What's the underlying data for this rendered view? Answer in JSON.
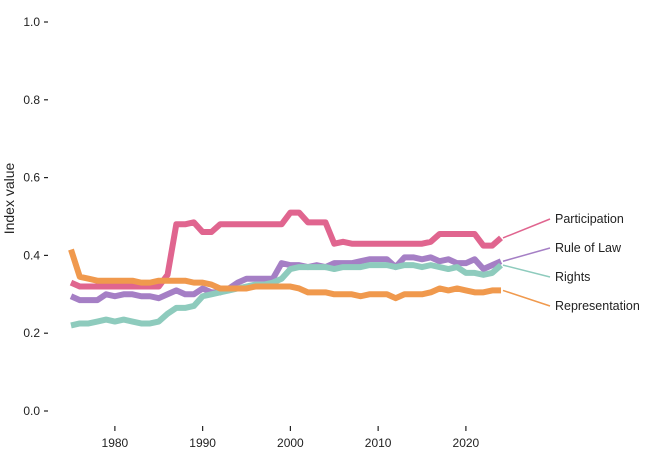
{
  "chart_data": {
    "type": "line",
    "title": "",
    "xlabel": "",
    "ylabel": "Index value",
    "xlim": [
      1974.5,
      2025.5
    ],
    "ylim": [
      0,
      1
    ],
    "x_ticks": [
      1980,
      1990,
      2000,
      2010,
      2020
    ],
    "y_ticks": [
      0.0,
      0.2,
      0.4,
      0.6,
      0.8,
      1.0
    ],
    "y_tick_labels": [
      "0.0",
      "0.2",
      "0.4",
      "0.6",
      "0.8",
      "1.0"
    ],
    "grid": false,
    "legend": "direct labels at line ends (right)",
    "x": [
      1975,
      1976,
      1977,
      1978,
      1979,
      1980,
      1981,
      1982,
      1983,
      1984,
      1985,
      1986,
      1987,
      1988,
      1989,
      1990,
      1991,
      1992,
      1993,
      1994,
      1995,
      1996,
      1997,
      1998,
      1999,
      2000,
      2001,
      2002,
      2003,
      2004,
      2005,
      2006,
      2007,
      2008,
      2009,
      2010,
      2011,
      2012,
      2013,
      2014,
      2015,
      2016,
      2017,
      2018,
      2019,
      2020,
      2021,
      2022,
      2023,
      2024
    ],
    "series": [
      {
        "name": "Participation",
        "color": "#e0658f",
        "values": [
          0.33,
          0.32,
          0.32,
          0.32,
          0.32,
          0.32,
          0.32,
          0.32,
          0.32,
          0.32,
          0.32,
          0.35,
          0.48,
          0.48,
          0.485,
          0.46,
          0.46,
          0.48,
          0.48,
          0.48,
          0.48,
          0.48,
          0.48,
          0.48,
          0.48,
          0.51,
          0.51,
          0.485,
          0.485,
          0.485,
          0.43,
          0.435,
          0.43,
          0.43,
          0.43,
          0.43,
          0.43,
          0.43,
          0.43,
          0.43,
          0.43,
          0.435,
          0.455,
          0.455,
          0.455,
          0.455,
          0.455,
          0.425,
          0.425,
          0.445
        ]
      },
      {
        "name": "Rule of Law",
        "color": "#a57fc5",
        "values": [
          0.295,
          0.285,
          0.285,
          0.285,
          0.3,
          0.295,
          0.3,
          0.3,
          0.295,
          0.295,
          0.29,
          0.3,
          0.31,
          0.3,
          0.3,
          0.315,
          0.305,
          0.305,
          0.315,
          0.33,
          0.34,
          0.34,
          0.34,
          0.34,
          0.38,
          0.375,
          0.375,
          0.37,
          0.375,
          0.37,
          0.38,
          0.38,
          0.38,
          0.385,
          0.39,
          0.39,
          0.39,
          0.37,
          0.395,
          0.395,
          0.39,
          0.395,
          0.385,
          0.39,
          0.38,
          0.38,
          0.39,
          0.365,
          0.375,
          0.385
        ]
      },
      {
        "name": "Rights",
        "color": "#8ecbbd",
        "values": [
          0.22,
          0.225,
          0.225,
          0.23,
          0.235,
          0.23,
          0.235,
          0.23,
          0.225,
          0.225,
          0.23,
          0.25,
          0.265,
          0.265,
          0.27,
          0.295,
          0.3,
          0.305,
          0.31,
          0.315,
          0.32,
          0.325,
          0.325,
          0.33,
          0.34,
          0.365,
          0.37,
          0.37,
          0.37,
          0.37,
          0.365,
          0.37,
          0.37,
          0.37,
          0.375,
          0.375,
          0.375,
          0.37,
          0.375,
          0.375,
          0.37,
          0.375,
          0.37,
          0.365,
          0.37,
          0.355,
          0.355,
          0.35,
          0.355,
          0.375
        ]
      },
      {
        "name": "Representation",
        "color": "#f0994d",
        "values": [
          0.415,
          0.345,
          0.34,
          0.335,
          0.335,
          0.335,
          0.335,
          0.335,
          0.33,
          0.33,
          0.335,
          0.335,
          0.335,
          0.335,
          0.33,
          0.33,
          0.325,
          0.315,
          0.315,
          0.315,
          0.315,
          0.32,
          0.32,
          0.32,
          0.32,
          0.32,
          0.315,
          0.305,
          0.305,
          0.305,
          0.3,
          0.3,
          0.3,
          0.295,
          0.3,
          0.3,
          0.3,
          0.29,
          0.3,
          0.3,
          0.3,
          0.305,
          0.315,
          0.31,
          0.315,
          0.31,
          0.305,
          0.305,
          0.31,
          0.31
        ]
      }
    ]
  }
}
